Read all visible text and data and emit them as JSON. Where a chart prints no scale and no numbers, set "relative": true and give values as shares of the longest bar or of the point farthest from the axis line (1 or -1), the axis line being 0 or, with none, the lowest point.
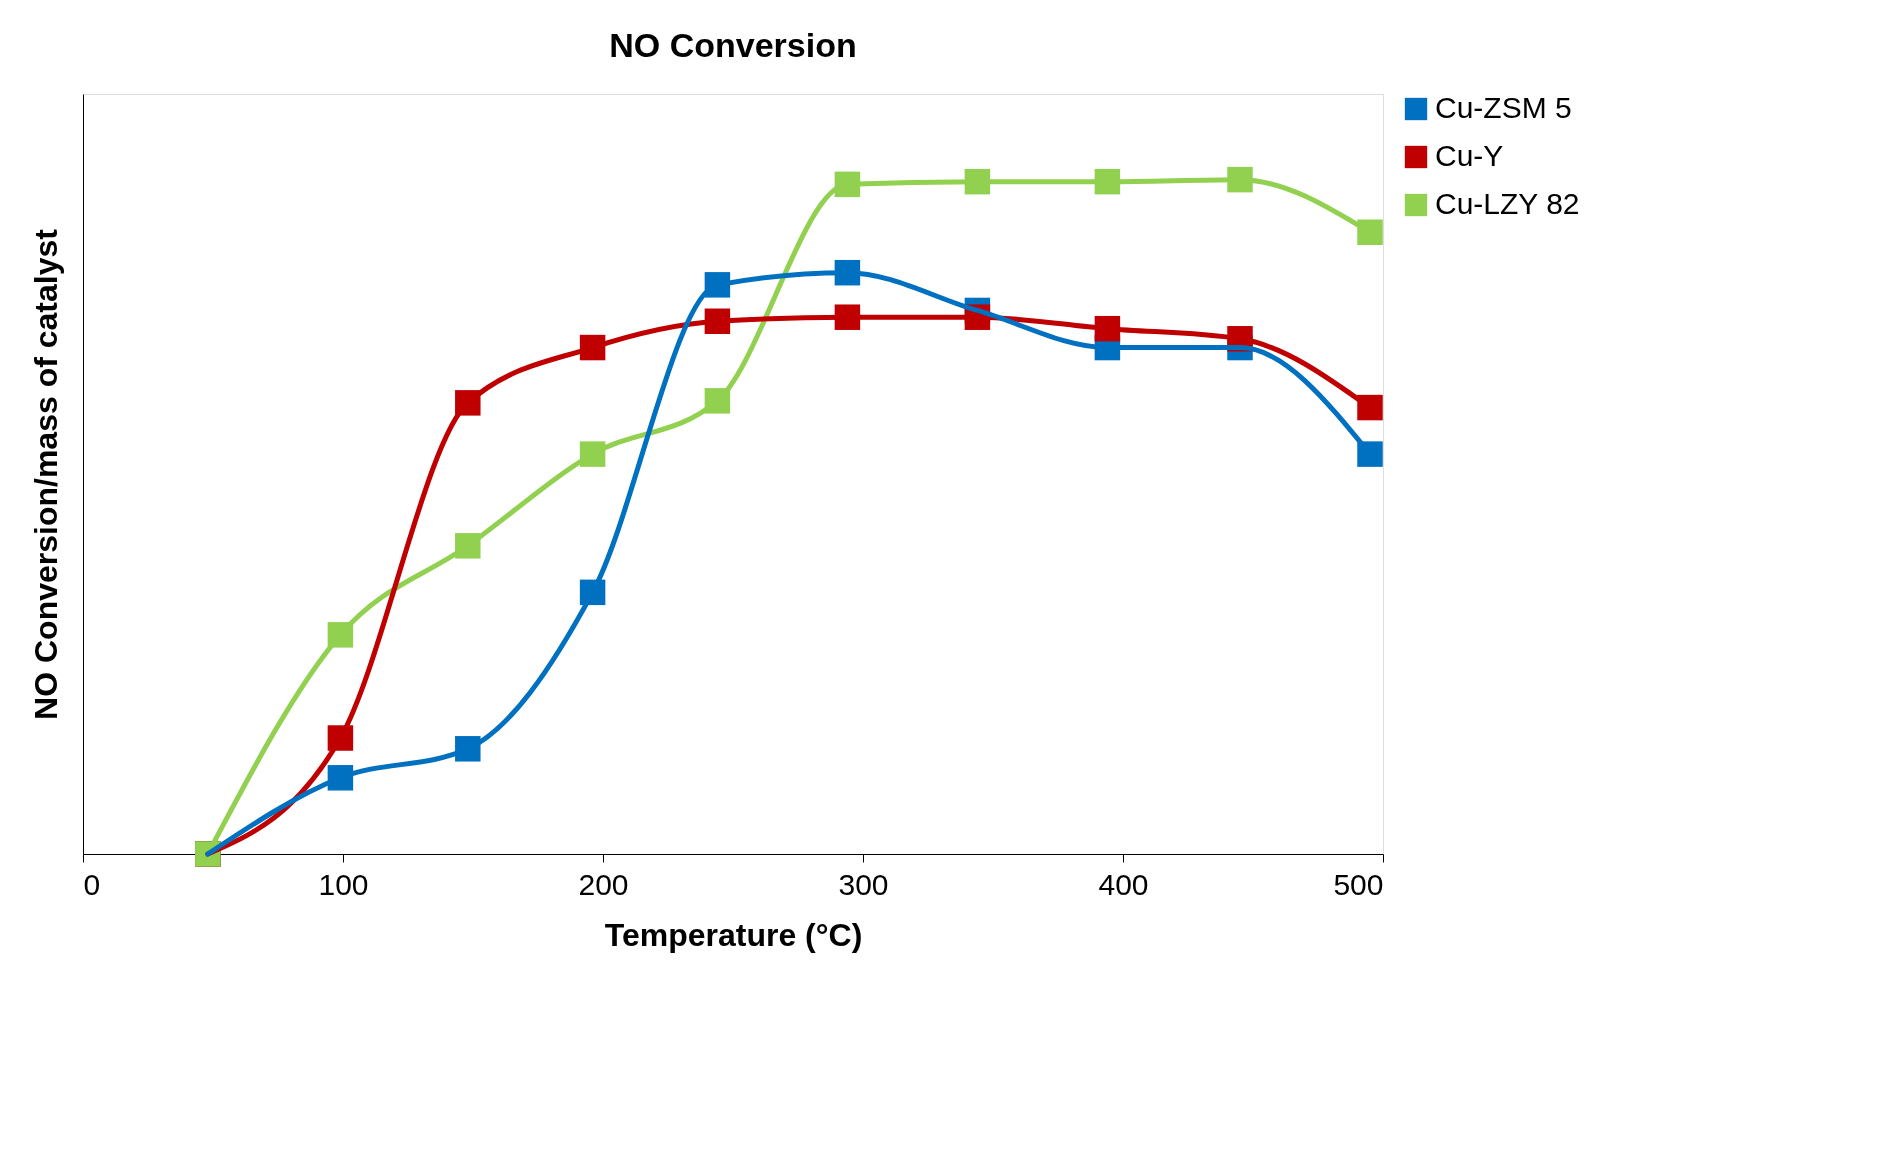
{
  "chart_data": {
    "type": "line",
    "title": "NO Conversion",
    "xlabel": "Temperature (°C)",
    "ylabel": "NO Conversion/mass of catalyst",
    "relative": true,
    "x": [
      48,
      99,
      148,
      196,
      244,
      294,
      344,
      394,
      445,
      495
    ],
    "xlim": [
      0,
      500
    ],
    "xticks": [
      0,
      100,
      200,
      300,
      400,
      500
    ],
    "grid": false,
    "legend": "right",
    "marker": "square",
    "line_style": "solid",
    "series": [
      {
        "name": "Cu-ZSM 5",
        "color": "#0070c0",
        "values": [
          0,
          0.113,
          0.156,
          0.388,
          0.844,
          0.862,
          0.806,
          0.751,
          0.751,
          0.593
        ]
      },
      {
        "name": "Cu-Y",
        "color": "#c00000",
        "values": [
          0,
          0.172,
          0.669,
          0.751,
          0.79,
          0.796,
          0.796,
          0.779,
          0.764,
          0.662
        ]
      },
      {
        "name": "Cu-LZY 82",
        "color": "#92d050",
        "values": [
          0,
          0.325,
          0.457,
          0.593,
          0.672,
          0.993,
          0.997,
          0.997,
          1,
          0.922
        ]
      }
    ]
  }
}
